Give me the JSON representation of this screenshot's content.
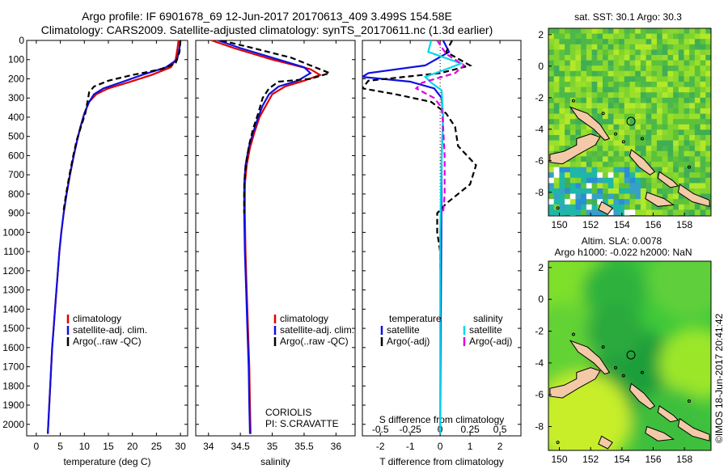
{
  "title_line1": "Argo profile: IF 6901678_69 12-Jun-2017 20170613_409 3.499S 154.58E",
  "title_line2": "Climatology: CARS2009. Satellite-adjusted climatology: synTS_20170611.nc (1.3d earlier)",
  "side_label": "©IMOS 18-Jun-2017 20:41:42",
  "colors": {
    "climatology": "#e00000",
    "satellite": "#1010e0",
    "argo": "#000000",
    "sal_satellite": "#00d8e8",
    "sal_argo": "#e000e0",
    "land": "#f3c9a8"
  },
  "chart_data": [
    {
      "type": "line",
      "xlabel": "temperature (deg C)",
      "xticks": [
        0,
        5,
        10,
        15,
        20,
        25,
        30
      ],
      "xlim": [
        -2,
        31.5
      ],
      "ylim": [
        2060,
        0
      ],
      "yticks": [
        0,
        100,
        200,
        300,
        400,
        500,
        600,
        700,
        800,
        900,
        1000,
        1100,
        1200,
        1300,
        1400,
        1500,
        1600,
        1700,
        1800,
        1900,
        2000
      ],
      "legend": [
        "climatology",
        "satellite-adj. clim.",
        "Argo(..raw -QC)"
      ],
      "series": [
        {
          "name": "climatology",
          "color": "#e00000",
          "dash": "",
          "points": [
            [
              29.6,
              0
            ],
            [
              29.4,
              40
            ],
            [
              29,
              100
            ],
            [
              28,
              140
            ],
            [
              24,
              180
            ],
            [
              19,
              220
            ],
            [
              15,
              250
            ],
            [
              12.5,
              280
            ],
            [
              11,
              320
            ],
            [
              10,
              380
            ],
            [
              9.2,
              450
            ],
            [
              8.5,
              520
            ],
            [
              7.8,
              600
            ],
            [
              7,
              700
            ],
            [
              6.3,
              800
            ],
            [
              5.7,
              900
            ],
            [
              5.2,
              1000
            ],
            [
              4.8,
              1100
            ],
            [
              4.5,
              1200
            ],
            [
              4.2,
              1300
            ],
            [
              3.9,
              1400
            ],
            [
              3.6,
              1500
            ],
            [
              3.3,
              1600
            ],
            [
              3.1,
              1700
            ],
            [
              2.9,
              1800
            ],
            [
              2.7,
              1900
            ],
            [
              2.5,
              2000
            ],
            [
              2.4,
              2050
            ]
          ]
        },
        {
          "name": "satellite-adj. clim.",
          "color": "#1010e0",
          "dash": "",
          "points": [
            [
              30,
              0
            ],
            [
              29.8,
              40
            ],
            [
              29.3,
              100
            ],
            [
              27,
              140
            ],
            [
              22,
              180
            ],
            [
              17.5,
              220
            ],
            [
              14,
              250
            ],
            [
              12,
              280
            ],
            [
              11,
              320
            ],
            [
              10,
              380
            ],
            [
              9.2,
              450
            ],
            [
              8.5,
              520
            ],
            [
              7.8,
              600
            ],
            [
              7,
              700
            ],
            [
              6.3,
              800
            ],
            [
              5.7,
              900
            ],
            [
              5.2,
              1000
            ],
            [
              4.8,
              1100
            ],
            [
              4.5,
              1200
            ],
            [
              4.2,
              1300
            ],
            [
              3.9,
              1400
            ],
            [
              3.6,
              1500
            ],
            [
              3.3,
              1600
            ],
            [
              3.1,
              1700
            ],
            [
              2.9,
              1800
            ],
            [
              2.7,
              1900
            ],
            [
              2.5,
              2000
            ],
            [
              2.4,
              2050
            ]
          ]
        },
        {
          "name": "Argo(..raw -QC)",
          "color": "#000000",
          "dash": "7,4",
          "points": [
            [
              30,
              0
            ],
            [
              29.8,
              60
            ],
            [
              29,
              120
            ],
            [
              26,
              150
            ],
            [
              20,
              180
            ],
            [
              15,
              210
            ],
            [
              12,
              240
            ],
            [
              11,
              270
            ],
            [
              10.8,
              300
            ],
            [
              10.2,
              380
            ],
            [
              9.3,
              450
            ],
            [
              8.4,
              520
            ],
            [
              7.7,
              600
            ],
            [
              6.9,
              700
            ],
            [
              6.2,
              800
            ],
            [
              5.6,
              900
            ]
          ]
        }
      ]
    },
    {
      "type": "line",
      "xlabel": "salinity",
      "xticks": [
        34,
        34.5,
        35,
        35.5,
        36
      ],
      "xlim": [
        33.8,
        36.3
      ],
      "ylim": [
        2060,
        0
      ],
      "legend": [
        "climatology",
        "satellite-adj. clim.",
        "Argo(..raw -QC)"
      ],
      "annotation": [
        "CORIOLIS",
        "PI: S.CRAVATTE"
      ],
      "series": [
        {
          "name": "climatology",
          "color": "#e00000",
          "dash": "",
          "points": [
            [
              34.05,
              0
            ],
            [
              34.4,
              40
            ],
            [
              35,
              100
            ],
            [
              35.6,
              150
            ],
            [
              35.75,
              180
            ],
            [
              35.5,
              210
            ],
            [
              35.2,
              240
            ],
            [
              35,
              280
            ],
            [
              34.9,
              340
            ],
            [
              34.8,
              400
            ],
            [
              34.72,
              480
            ],
            [
              34.65,
              560
            ],
            [
              34.6,
              650
            ],
            [
              34.57,
              750
            ],
            [
              34.57,
              900
            ],
            [
              34.58,
              1100
            ],
            [
              34.6,
              1300
            ],
            [
              34.62,
              1500
            ],
            [
              34.64,
              1700
            ],
            [
              34.65,
              1900
            ],
            [
              34.66,
              2050
            ]
          ]
        },
        {
          "name": "satellite-adj. clim.",
          "color": "#1010e0",
          "dash": "",
          "points": [
            [
              34.15,
              0
            ],
            [
              34.5,
              40
            ],
            [
              35.1,
              100
            ],
            [
              35.5,
              140
            ],
            [
              35.6,
              170
            ],
            [
              35.4,
              210
            ],
            [
              35.1,
              240
            ],
            [
              34.95,
              280
            ],
            [
              34.85,
              340
            ],
            [
              34.78,
              400
            ],
            [
              34.7,
              480
            ],
            [
              34.63,
              560
            ],
            [
              34.58,
              650
            ],
            [
              34.56,
              750
            ],
            [
              34.56,
              900
            ],
            [
              34.57,
              1100
            ],
            [
              34.59,
              1300
            ],
            [
              34.61,
              1500
            ],
            [
              34.63,
              1700
            ],
            [
              34.64,
              1900
            ],
            [
              34.65,
              2050
            ]
          ]
        },
        {
          "name": "Argo(..raw -QC)",
          "color": "#000000",
          "dash": "7,4",
          "points": [
            [
              34.2,
              0
            ],
            [
              34.7,
              40
            ],
            [
              35.3,
              90
            ],
            [
              35.9,
              170
            ],
            [
              35.6,
              200
            ],
            [
              35.1,
              215
            ],
            [
              34.95,
              250
            ],
            [
              34.85,
              300
            ],
            [
              34.78,
              380
            ],
            [
              34.7,
              460
            ],
            [
              34.64,
              540
            ],
            [
              34.6,
              620
            ],
            [
              34.57,
              700
            ],
            [
              34.56,
              800
            ],
            [
              34.56,
              900
            ]
          ]
        }
      ]
    },
    {
      "type": "line",
      "xlabel": "T difference from climatology",
      "xlabel_top": "S difference from climatology",
      "xticks": [
        -2,
        -1,
        0,
        1,
        2
      ],
      "xticks_top": [
        -0.5,
        -0.25,
        0,
        0.25,
        0.5
      ],
      "xlim": [
        -2.6,
        2.7
      ],
      "ylim": [
        2060,
        0
      ],
      "legend_left": [
        "temperature",
        "satellite",
        "Argo(-adj)"
      ],
      "legend_right": [
        "salinity",
        "satellite",
        "Argo(-adj)"
      ],
      "series": [
        {
          "name": "satellite",
          "color": "#1010e0",
          "dash": "",
          "points": [
            [
              0.1,
              0
            ],
            [
              0.3,
              60
            ],
            [
              -0.5,
              130
            ],
            [
              -2.4,
              170
            ],
            [
              -2.6,
              190
            ],
            [
              -1,
              215
            ],
            [
              -0.2,
              250
            ],
            [
              0.05,
              300
            ],
            [
              0.1,
              400
            ],
            [
              0.05,
              600
            ],
            [
              0.04,
              1000
            ],
            [
              0.02,
              1500
            ],
            [
              0,
              2050
            ]
          ]
        },
        {
          "name": "Argo(-adj)",
          "color": "#000000",
          "dash": "7,4",
          "points": [
            [
              0.4,
              0
            ],
            [
              0.2,
              60
            ],
            [
              1,
              130
            ],
            [
              0,
              170
            ],
            [
              -2.4,
              210
            ],
            [
              -2.6,
              250
            ],
            [
              -1.5,
              280
            ],
            [
              -0.3,
              320
            ],
            [
              0.2,
              380
            ],
            [
              0.5,
              450
            ],
            [
              0.6,
              550
            ],
            [
              1.2,
              650
            ],
            [
              1,
              750
            ],
            [
              0.2,
              850
            ],
            [
              -0.1,
              900
            ],
            [
              -0.1,
              1000
            ],
            [
              0,
              1100
            ],
            [
              0,
              1200
            ]
          ]
        },
        {
          "name": "satellite",
          "color": "#00d8e8",
          "dash": "",
          "points": [
            [
              -0.3,
              0
            ],
            [
              -0.4,
              60
            ],
            [
              0.7,
              120
            ],
            [
              0.2,
              150
            ],
            [
              -0.5,
              190
            ],
            [
              -0.3,
              220
            ],
            [
              0.05,
              260
            ],
            [
              0.1,
              400
            ],
            [
              0.05,
              600
            ],
            [
              0,
              1000
            ],
            [
              0,
              2050
            ]
          ]
        },
        {
          "name": "Argo(-adj)",
          "color": "#e000e0",
          "dash": "7,4",
          "points": [
            [
              -0.1,
              0
            ],
            [
              0.2,
              70
            ],
            [
              0.8,
              130
            ],
            [
              0.5,
              170
            ],
            [
              -0.6,
              220
            ],
            [
              -0.8,
              250
            ],
            [
              -0.2,
              300
            ],
            [
              0.05,
              350
            ],
            [
              0.1,
              450
            ],
            [
              0.15,
              600
            ],
            [
              0.15,
              800
            ],
            [
              0.1,
              900
            ]
          ]
        }
      ]
    }
  ],
  "maps": [
    {
      "title": "sat. SST: 30.1  Argo: 30.3",
      "title_line2": "",
      "xticks": [
        150,
        152,
        154,
        156,
        158
      ],
      "yticks": [
        2,
        0,
        -2,
        -4,
        -6,
        -8
      ],
      "xlim": [
        149.3,
        159.7
      ],
      "ylim": [
        -9.5,
        2.4
      ],
      "marker": [
        154.58,
        -3.499
      ]
    },
    {
      "title": "Altim. SLA: 0.0078",
      "title_line2": "Argo h1000: -0.022 h2000: NaN",
      "xticks": [
        150,
        152,
        154,
        156,
        158
      ],
      "yticks": [
        2,
        0,
        -2,
        -4,
        -6,
        -8
      ],
      "xlim": [
        149.3,
        159.7
      ],
      "ylim": [
        -9.5,
        2.4
      ],
      "marker": [
        154.58,
        -3.499
      ]
    }
  ]
}
